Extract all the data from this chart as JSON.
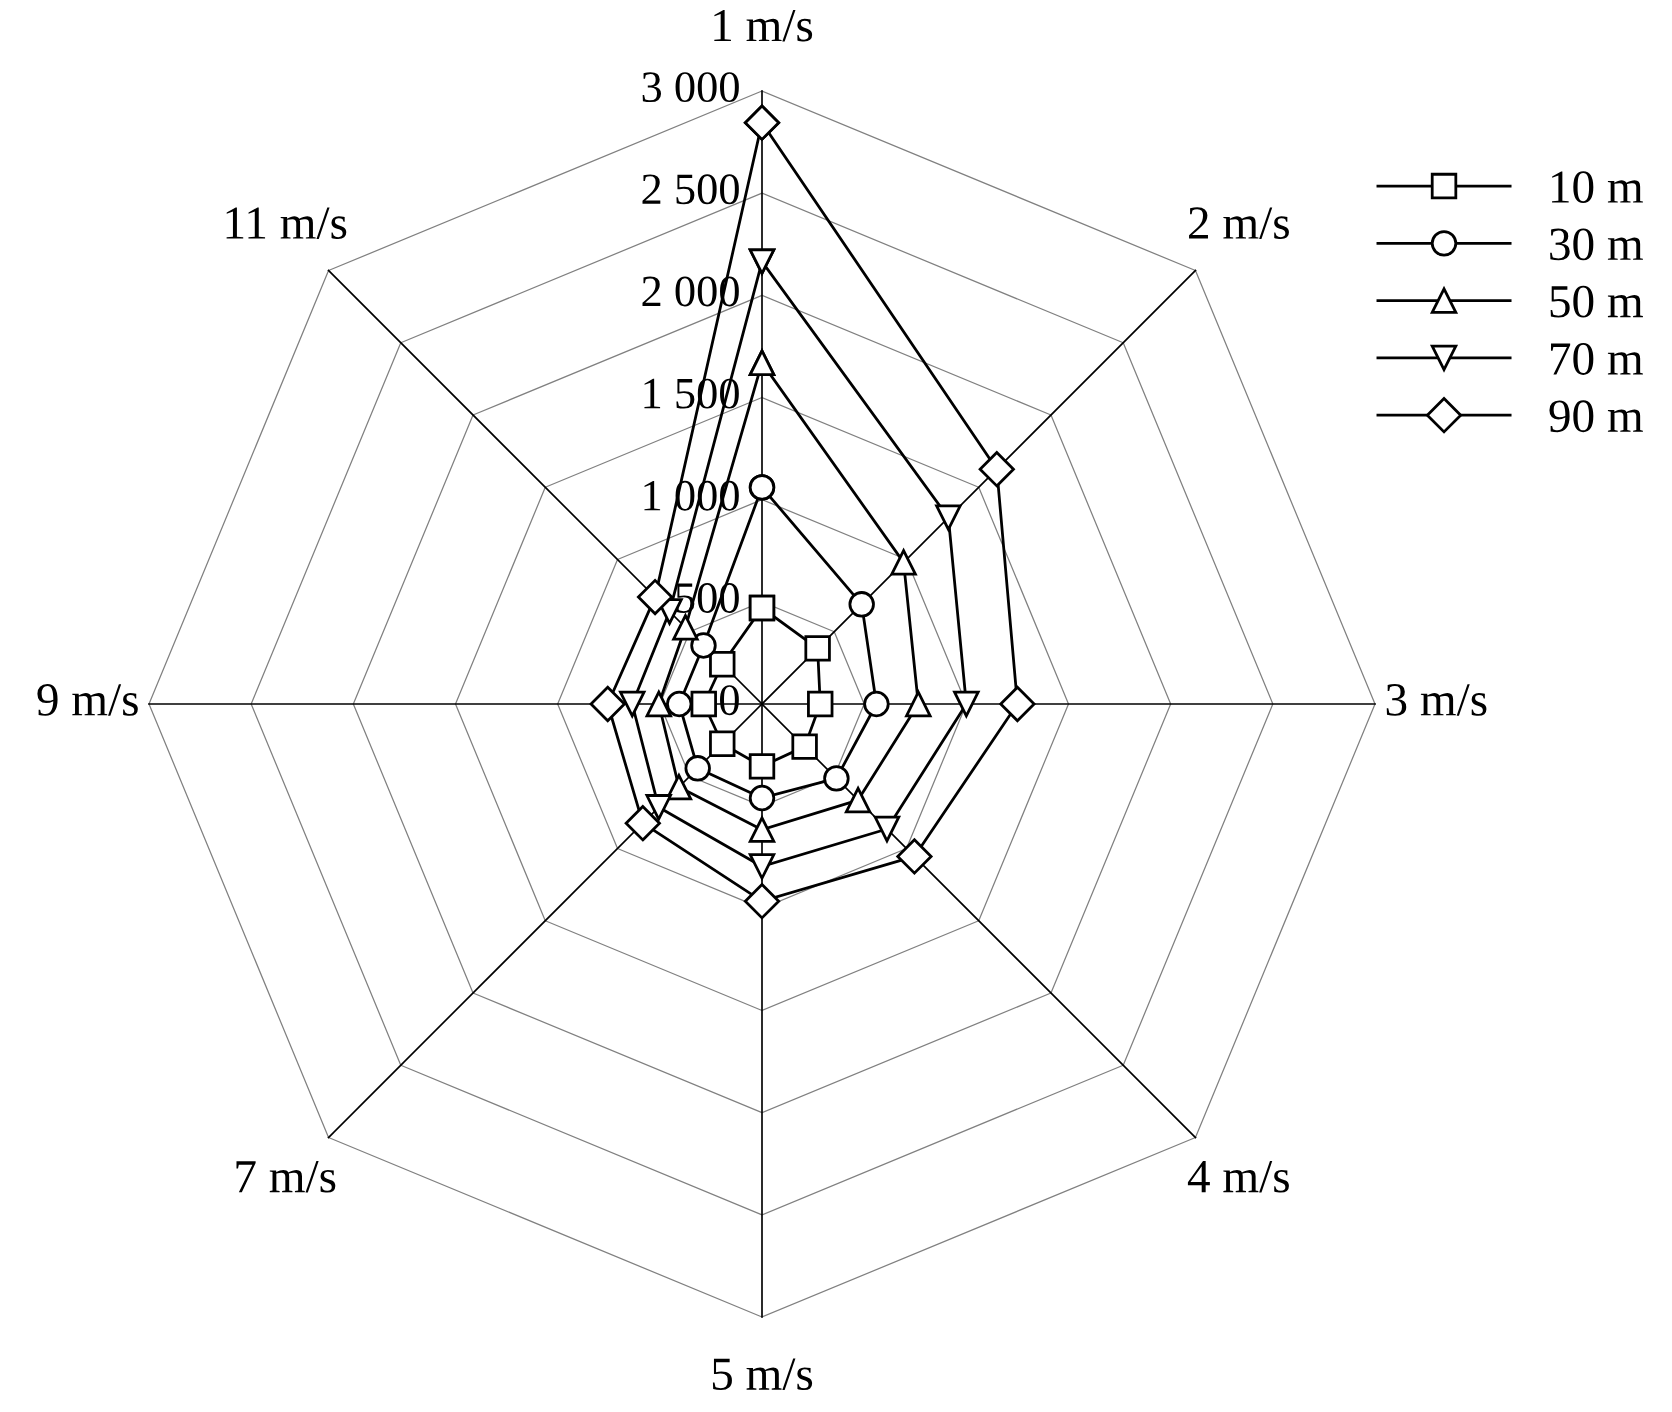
{
  "chart_data": {
    "type": "radar",
    "categories": [
      "1 m/s",
      "2 m/s",
      "3 m/s",
      "4 m/s",
      "5 m/s",
      "7 m/s",
      "9 m/s",
      "11 m/s"
    ],
    "ylim": [
      0,
      3000
    ],
    "yticks": [
      0,
      {
        "value": 500,
        "label": "500"
      },
      {
        "value": 1000,
        "label": "1 000"
      },
      {
        "value": 1500,
        "label": "1 500"
      },
      {
        "value": 2000,
        "label": "2 000"
      },
      {
        "value": 2500,
        "label": "2 500"
      },
      {
        "value": 3000,
        "label": "3 000"
      }
    ],
    "grid": true,
    "legend": "top right",
    "series": [
      {
        "name": "10 m",
        "color": "#000000",
        "marker": "square",
        "values": [
          470,
          385,
          285,
          295,
          305,
          275,
          285,
          275
        ]
      },
      {
        "name": "30 m",
        "color": "#000000",
        "marker": "circle",
        "values": [
          1060,
          690,
          560,
          515,
          460,
          445,
          405,
          405
        ]
      },
      {
        "name": "50 m",
        "color": "#000000",
        "marker": "triangle",
        "values": [
          1670,
          980,
          765,
          665,
          615,
          575,
          505,
          530
        ]
      },
      {
        "name": "70 m",
        "color": "#000000",
        "marker": "triangle_down",
        "values": [
          2165,
          1290,
          1000,
          865,
          795,
          715,
          635,
          640
        ]
      },
      {
        "name": "90 m",
        "color": "#000000",
        "marker": "diamond",
        "values": [
          2845,
          1625,
          1250,
          1055,
          965,
          825,
          755,
          740
        ]
      }
    ]
  }
}
